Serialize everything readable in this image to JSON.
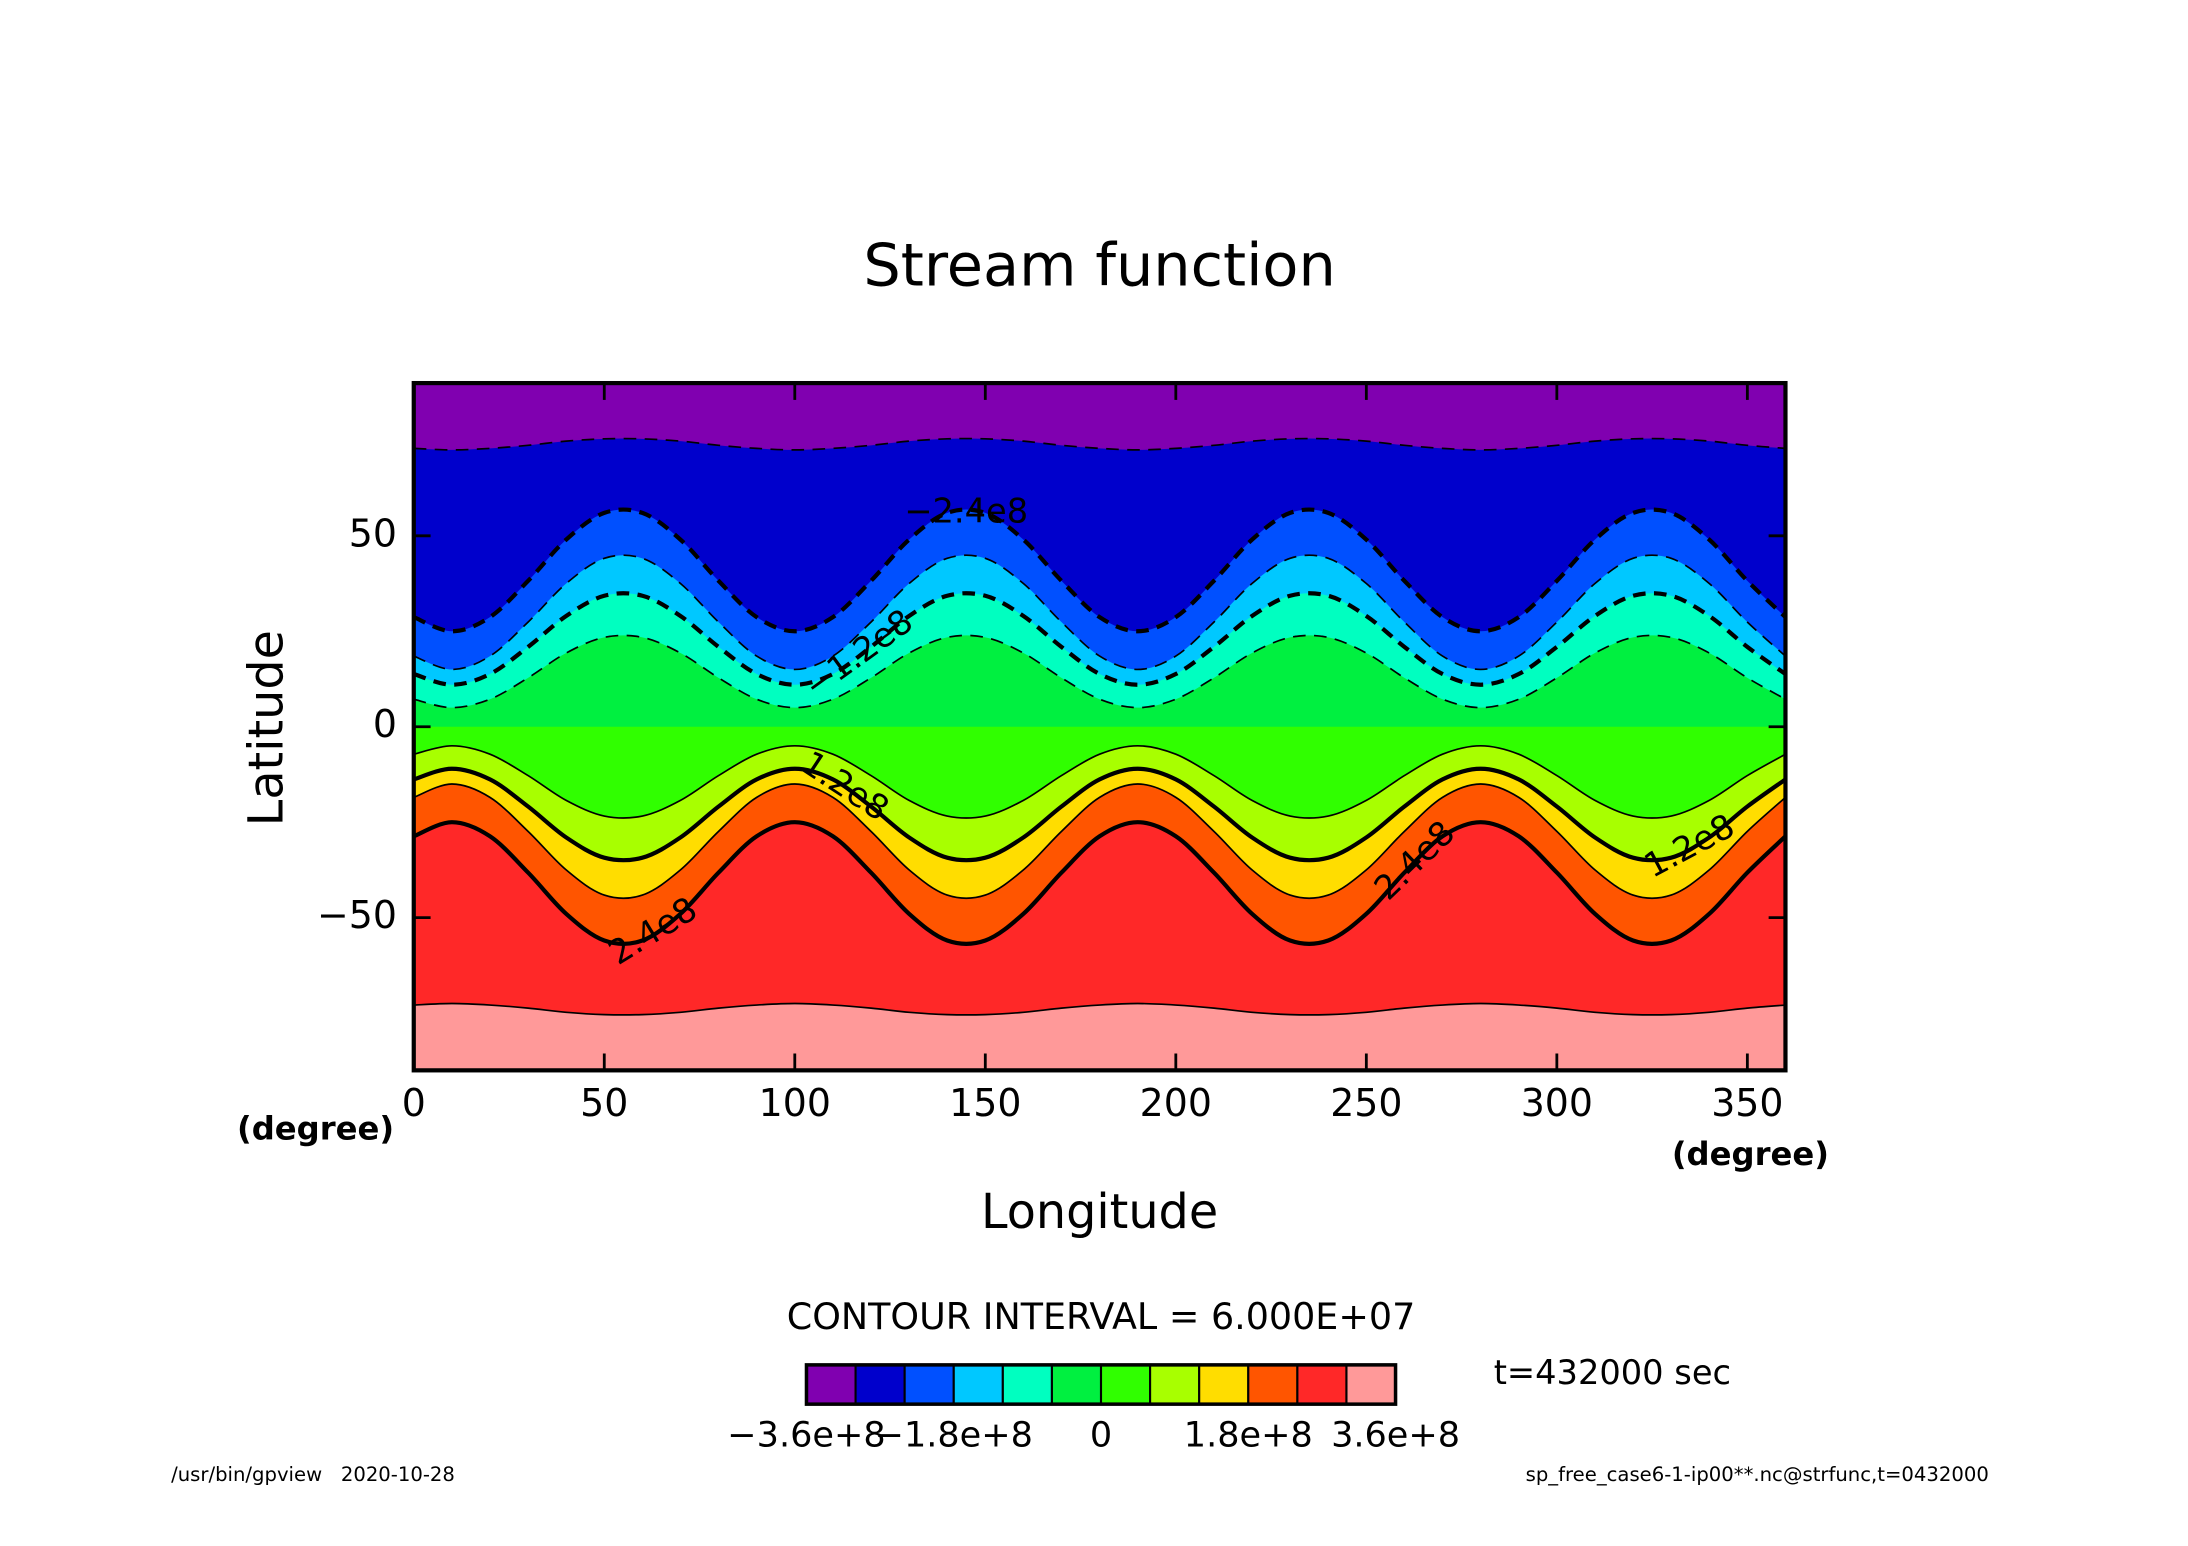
{
  "chart_data": {
    "type": "contour",
    "title": "Stream function",
    "xlabel": "Longitude",
    "ylabel": "Latitude",
    "xunit": "(degree)",
    "yunit": "(degree)",
    "xlim": [
      0,
      360
    ],
    "ylim": [
      -90,
      90
    ],
    "xticks": [
      0,
      50,
      100,
      150,
      200,
      250,
      300,
      350
    ],
    "yticks": [
      {
        "value": -50,
        "label": "−50"
      },
      0,
      50
    ],
    "x": [
      0,
      10,
      20,
      30,
      40,
      50,
      60,
      70,
      80,
      90,
      100,
      110,
      120,
      130,
      140,
      150,
      160,
      170,
      180,
      190,
      200,
      210,
      220,
      230,
      240,
      250,
      260,
      270,
      280,
      290,
      300,
      310,
      320,
      330,
      340,
      350,
      360
    ],
    "contours": [
      {
        "level": -300000000,
        "thick": false,
        "draw_line": true,
        "values": [
          72.9,
          72.5,
          72.9,
          73.7,
          74.8,
          75.4,
          75.4,
          74.8,
          73.7,
          72.9,
          72.5,
          72.9,
          73.7,
          74.8,
          75.4,
          75.4,
          74.8,
          73.7,
          72.9,
          72.5,
          72.9,
          73.7,
          74.8,
          75.4,
          75.4,
          74.8,
          73.7,
          72.9,
          72.5,
          72.9,
          73.7,
          74.8,
          75.4,
          75.4,
          74.8,
          73.7,
          72.9
        ]
      },
      {
        "level": -240000000,
        "thick": true,
        "draw_line": true,
        "label": "−2.4e8",
        "label_x": [
          145
        ],
        "values": [
          28.7,
          25,
          28.7,
          38.2,
          49,
          56,
          56,
          49,
          38.2,
          28.7,
          25,
          28.7,
          38.2,
          49,
          56,
          56,
          49,
          38.2,
          28.7,
          25,
          28.7,
          38.2,
          49,
          56,
          56,
          49,
          38.2,
          28.7,
          25,
          28.7,
          38.2,
          49,
          56,
          56,
          49,
          38.2,
          28.7
        ]
      },
      {
        "level": -180000000,
        "thick": false,
        "draw_line": true,
        "values": [
          18.5,
          15,
          18.5,
          27.4,
          37.5,
          44.1,
          44.1,
          37.5,
          27.4,
          18.5,
          15,
          18.5,
          27.4,
          37.5,
          44.1,
          44.1,
          37.5,
          27.4,
          18.5,
          15,
          18.5,
          27.4,
          37.5,
          44.1,
          44.1,
          37.5,
          27.4,
          18.5,
          15,
          18.5,
          27.4,
          37.5,
          44.1,
          44.1,
          37.5,
          27.4,
          18.5
        ]
      },
      {
        "level": -120000000,
        "thick": true,
        "draw_line": true,
        "label": "−1.2e8",
        "label_x": [
          117
        ],
        "values": [
          13.8,
          11,
          13.8,
          20.9,
          29,
          34.3,
          34.3,
          29,
          20.9,
          13.8,
          11,
          13.8,
          20.9,
          29,
          34.3,
          34.3,
          29,
          20.9,
          13.8,
          11,
          13.8,
          20.9,
          29,
          34.3,
          34.3,
          29,
          20.9,
          13.8,
          11,
          13.8,
          20.9,
          29,
          34.3,
          34.3,
          29,
          20.9,
          13.8
        ]
      },
      {
        "level": -60000000,
        "thick": false,
        "draw_line": true,
        "values": [
          7.2,
          5,
          7.2,
          12.8,
          19.3,
          23.4,
          23.4,
          19.3,
          12.8,
          7.2,
          5,
          7.2,
          12.8,
          19.3,
          23.4,
          23.4,
          19.3,
          12.8,
          7.2,
          5,
          7.2,
          12.8,
          19.3,
          23.4,
          23.4,
          19.3,
          12.8,
          7.2,
          5,
          7.2,
          12.8,
          19.3,
          23.4,
          23.4,
          19.3,
          12.8,
          7.2
        ]
      },
      {
        "level": 0,
        "thick": false,
        "draw_line": false,
        "values": [
          0,
          0,
          0,
          0,
          0,
          0,
          0,
          0,
          0,
          0,
          0,
          0,
          0,
          0,
          0,
          0,
          0,
          0,
          0,
          0,
          0,
          0,
          0,
          0,
          0,
          0,
          0,
          0,
          0,
          0,
          0,
          0,
          0,
          0,
          0,
          0,
          0
        ]
      },
      {
        "level": 60000000,
        "thick": false,
        "draw_line": true,
        "values": [
          -7.2,
          -5,
          -7.2,
          -12.8,
          -19.3,
          -23.4,
          -23.4,
          -19.3,
          -12.8,
          -7.2,
          -5,
          -7.2,
          -12.8,
          -19.3,
          -23.4,
          -23.4,
          -19.3,
          -12.8,
          -7.2,
          -5,
          -7.2,
          -12.8,
          -19.3,
          -23.4,
          -23.4,
          -19.3,
          -12.8,
          -7.2,
          -5,
          -7.2,
          -12.8,
          -19.3,
          -23.4,
          -23.4,
          -19.3,
          -12.8,
          -7.2
        ]
      },
      {
        "level": 120000000,
        "thick": true,
        "draw_line": true,
        "label": "1.2e8",
        "label_x": [
          113,
          335
        ],
        "values": [
          -13.8,
          -11,
          -13.8,
          -20.9,
          -29,
          -34.3,
          -34.3,
          -29,
          -20.9,
          -13.8,
          -11,
          -13.8,
          -20.9,
          -29,
          -34.3,
          -34.3,
          -29,
          -20.9,
          -13.8,
          -11,
          -13.8,
          -20.9,
          -29,
          -34.3,
          -34.3,
          -29,
          -20.9,
          -13.8,
          -11,
          -13.8,
          -20.9,
          -29,
          -34.3,
          -34.3,
          -29,
          -20.9,
          -13.8
        ]
      },
      {
        "level": 180000000,
        "thick": false,
        "draw_line": true,
        "values": [
          -18.5,
          -15,
          -18.5,
          -27.4,
          -37.5,
          -44.1,
          -44.1,
          -37.5,
          -27.4,
          -18.5,
          -15,
          -18.5,
          -27.4,
          -37.5,
          -44.1,
          -44.1,
          -37.5,
          -27.4,
          -18.5,
          -15,
          -18.5,
          -27.4,
          -37.5,
          -44.1,
          -44.1,
          -37.5,
          -27.4,
          -18.5,
          -15,
          -18.5,
          -27.4,
          -37.5,
          -44.1,
          -44.1,
          -37.5,
          -27.4,
          -18.5
        ]
      },
      {
        "level": 240000000,
        "thick": true,
        "draw_line": true,
        "label": "2.4e8",
        "label_x": [
          63,
          263
        ],
        "values": [
          -28.7,
          -25,
          -28.7,
          -38.2,
          -49,
          -56,
          -56,
          -49,
          -38.2,
          -28.7,
          -25,
          -28.7,
          -38.2,
          -49,
          -56,
          -56,
          -49,
          -38.2,
          -28.7,
          -25,
          -28.7,
          -38.2,
          -49,
          -56,
          -56,
          -49,
          -38.2,
          -28.7,
          -25,
          -28.7,
          -38.2,
          -49,
          -56,
          -56,
          -49,
          -38.2,
          -28.7
        ]
      },
      {
        "level": 300000000,
        "thick": false,
        "draw_line": true,
        "values": [
          -72.9,
          -72.5,
          -72.9,
          -73.7,
          -74.8,
          -75.4,
          -75.4,
          -74.8,
          -73.7,
          -72.9,
          -72.5,
          -72.9,
          -73.7,
          -74.8,
          -75.4,
          -75.4,
          -74.8,
          -73.7,
          -72.9,
          -72.5,
          -72.9,
          -73.7,
          -74.8,
          -75.4,
          -75.4,
          -74.8,
          -73.7,
          -72.9,
          -72.5,
          -72.9,
          -73.7,
          -74.8,
          -75.4,
          -75.4,
          -74.8,
          -73.7,
          -72.9
        ]
      }
    ],
    "colorbar": {
      "levels": [
        -360000000,
        -300000000,
        -240000000,
        -180000000,
        -120000000,
        -60000000,
        0,
        60000000,
        120000000,
        180000000,
        240000000,
        300000000,
        360000000
      ],
      "colors": [
        "#8000b0",
        "#0000cc",
        "#0050ff",
        "#00c8ff",
        "#00ffc0",
        "#00f040",
        "#30ff00",
        "#a8ff00",
        "#ffdd00",
        "#ff5500",
        "#ff2828",
        "#ff9999"
      ],
      "ticks": [
        {
          "value": -360000000,
          "label": "−3.6e+8"
        },
        {
          "value": -180000000,
          "label": "−1.8e+8"
        },
        0,
        {
          "value": 180000000,
          "label": "1.8e+8"
        },
        {
          "value": 360000000,
          "label": "3.6e+8"
        }
      ]
    },
    "contour_interval_note": "CONTOUR INTERVAL = 6.000E+07",
    "time_note": "t=432000 sec",
    "footer_left": "/usr/bin/gpview   2020-10-28",
    "footer_right": "sp_free_case6-1-ip00**.nc@strfunc,t=0432000"
  }
}
